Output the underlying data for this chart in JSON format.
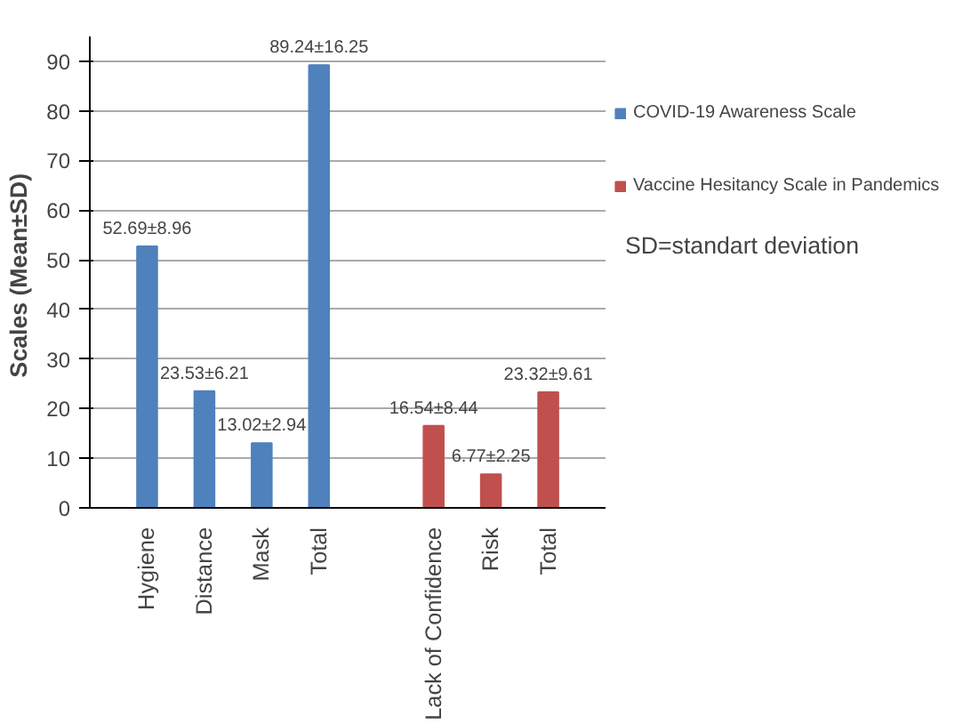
{
  "chart_data": {
    "type": "bar",
    "ylabel": "Scales  (Mean±SD)",
    "categories": [
      "Hygiene",
      "Distance",
      "Mask",
      "Total",
      null,
      "Lack of Confidence",
      "Risk",
      "Total"
    ],
    "series": [
      {
        "name": "COVID-19 Awareness Scale",
        "color": "#4f81bd",
        "values": [
          52.69,
          23.53,
          13.02,
          89.24,
          null,
          null,
          null,
          null
        ],
        "value_labels": [
          "52.69±8.96",
          "23.53±6.21",
          "13.02±2.94",
          "89.24±16.25",
          null,
          null,
          null,
          null
        ]
      },
      {
        "name": "Vaccine Hesitancy Scale in Pandemics",
        "color": "#c0504d",
        "values": [
          null,
          null,
          null,
          null,
          null,
          16.54,
          6.77,
          23.32
        ],
        "value_labels": [
          null,
          null,
          null,
          null,
          null,
          "16.54±8.44",
          "6.77±2.25",
          "23.32±9.61"
        ]
      }
    ],
    "ylim": [
      0,
      95
    ],
    "yticks": [
      0,
      10,
      20,
      30,
      40,
      50,
      60,
      70,
      80,
      90
    ],
    "grid": "y",
    "legend": "right",
    "annotations": [
      "SD=standart deviation"
    ]
  }
}
